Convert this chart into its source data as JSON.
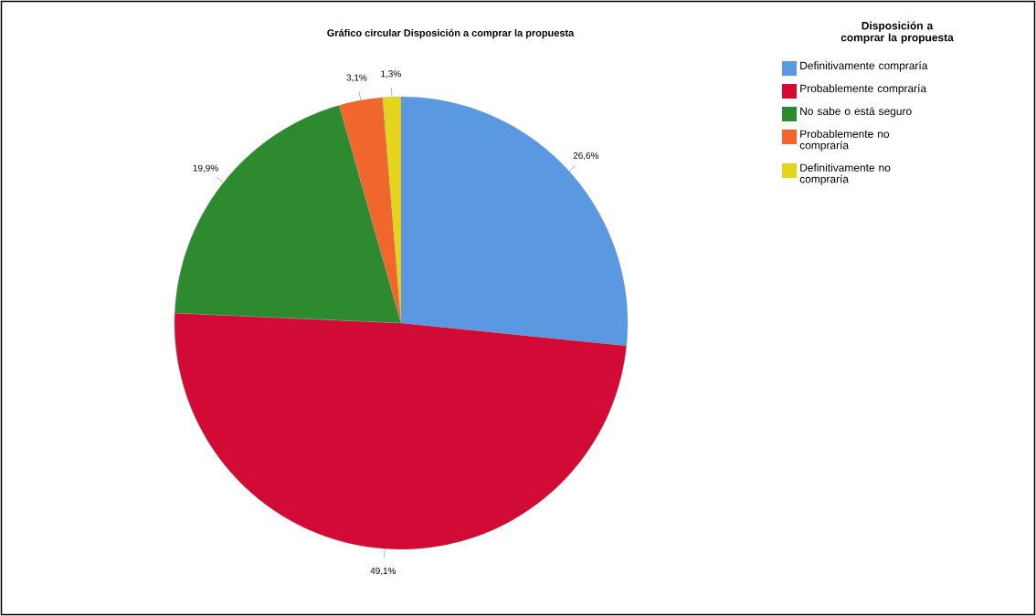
{
  "chart_data": {
    "type": "pie",
    "title": "Gráfico circular Disposición a comprar la propuesta",
    "legend_title": "Disposición a comprar la propuesta",
    "legend": "top right",
    "categories": [
      "Definitivamente compraría",
      "Probablemente compraría",
      "No sabe o está seguro",
      "Probablemente no compraría",
      "Definitivamente no compraría"
    ],
    "values": [
      26.6,
      49.1,
      19.9,
      3.1,
      1.3
    ],
    "value_labels": [
      "26,6%",
      "49,1%",
      "19,9%",
      "3,1%",
      "1,3%"
    ],
    "colors": [
      "#5b98e2",
      "#d10a36",
      "#2e8a2e",
      "#f0662c",
      "#e4d41c"
    ]
  }
}
